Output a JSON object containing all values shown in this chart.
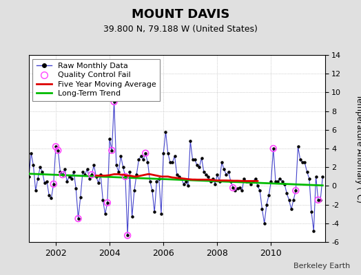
{
  "title": "MOUNT DAVIS",
  "subtitle": "39.800 N, 79.188 W (United States)",
  "ylabel": "Temperature Anomaly (°C)",
  "credit": "Berkeley Earth",
  "ylim": [
    -6,
    14
  ],
  "yticks": [
    -6,
    -4,
    -2,
    0,
    2,
    4,
    6,
    8,
    10,
    12,
    14
  ],
  "xlim": [
    2001.0,
    2012.0
  ],
  "fig_bg_color": "#e0e0e0",
  "plot_bg_color": "#ffffff",
  "raw_monthly_x": [
    2001.0,
    2001.0833,
    2001.1667,
    2001.25,
    2001.3333,
    2001.4167,
    2001.5,
    2001.5833,
    2001.6667,
    2001.75,
    2001.8333,
    2001.9167,
    2002.0,
    2002.0833,
    2002.1667,
    2002.25,
    2002.3333,
    2002.4167,
    2002.5,
    2002.5833,
    2002.6667,
    2002.75,
    2002.8333,
    2002.9167,
    2003.0,
    2003.0833,
    2003.1667,
    2003.25,
    2003.3333,
    2003.4167,
    2003.5,
    2003.5833,
    2003.6667,
    2003.75,
    2003.8333,
    2003.9167,
    2004.0,
    2004.0833,
    2004.1667,
    2004.25,
    2004.3333,
    2004.4167,
    2004.5,
    2004.5833,
    2004.6667,
    2004.75,
    2004.8333,
    2004.9167,
    2005.0,
    2005.0833,
    2005.1667,
    2005.25,
    2005.3333,
    2005.4167,
    2005.5,
    2005.5833,
    2005.6667,
    2005.75,
    2005.8333,
    2005.9167,
    2006.0,
    2006.0833,
    2006.1667,
    2006.25,
    2006.3333,
    2006.4167,
    2006.5,
    2006.5833,
    2006.6667,
    2006.75,
    2006.8333,
    2006.9167,
    2007.0,
    2007.0833,
    2007.1667,
    2007.25,
    2007.3333,
    2007.4167,
    2007.5,
    2007.5833,
    2007.6667,
    2007.75,
    2007.8333,
    2007.9167,
    2008.0,
    2008.0833,
    2008.1667,
    2008.25,
    2008.3333,
    2008.4167,
    2008.5,
    2008.5833,
    2008.6667,
    2008.75,
    2008.8333,
    2008.9167,
    2009.0,
    2009.0833,
    2009.1667,
    2009.25,
    2009.3333,
    2009.4167,
    2009.5,
    2009.5833,
    2009.6667,
    2009.75,
    2009.8333,
    2009.9167,
    2010.0,
    2010.0833,
    2010.1667,
    2010.25,
    2010.3333,
    2010.4167,
    2010.5,
    2010.5833,
    2010.6667,
    2010.75,
    2010.8333,
    2010.9167,
    2011.0,
    2011.0833,
    2011.1667,
    2011.25,
    2011.3333,
    2011.4167,
    2011.5,
    2011.5833,
    2011.6667,
    2011.75,
    2011.8333,
    2011.9167
  ],
  "raw_monthly_y": [
    1.0,
    3.5,
    2.2,
    -0.5,
    0.8,
    2.0,
    1.5,
    0.3,
    0.5,
    -1.0,
    -1.3,
    0.2,
    4.2,
    3.8,
    1.5,
    1.2,
    1.8,
    0.5,
    1.0,
    0.8,
    1.5,
    -0.3,
    -3.5,
    -1.2,
    1.5,
    1.2,
    1.8,
    0.8,
    1.2,
    2.2,
    1.0,
    0.3,
    1.2,
    -1.5,
    -3.0,
    -1.8,
    5.0,
    3.8,
    9.0,
    2.2,
    1.5,
    3.2,
    2.0,
    1.0,
    -5.3,
    1.5,
    -3.3,
    -0.5,
    1.2,
    2.8,
    3.2,
    2.8,
    3.5,
    2.5,
    0.5,
    -0.5,
    -2.8,
    0.5,
    0.8,
    -3.0,
    3.5,
    5.8,
    3.5,
    2.5,
    2.5,
    3.2,
    1.2,
    1.0,
    0.8,
    0.2,
    0.5,
    0.0,
    4.8,
    2.8,
    2.8,
    2.2,
    2.0,
    3.0,
    1.5,
    1.2,
    1.0,
    0.5,
    0.8,
    0.2,
    1.2,
    0.5,
    2.5,
    1.8,
    1.2,
    1.5,
    0.5,
    -0.2,
    -0.5,
    -0.3,
    -0.2,
    -0.5,
    0.8,
    0.5,
    0.5,
    0.2,
    0.5,
    0.8,
    0.0,
    -0.5,
    -2.5,
    -4.0,
    -2.0,
    -1.0,
    0.5,
    4.0,
    0.5,
    0.5,
    0.8,
    0.5,
    0.2,
    -0.8,
    -1.5,
    -2.5,
    -1.5,
    -0.5,
    4.2,
    2.8,
    2.5,
    2.5,
    1.5,
    0.8,
    -2.8,
    -4.8,
    1.0,
    -1.5,
    -1.5,
    1.0
  ],
  "qc_fail_x": [
    2001.9167,
    2002.0,
    2002.0833,
    2002.25,
    2002.8333,
    2003.3333,
    2003.9167,
    2004.0833,
    2004.1667,
    2004.5833,
    2004.6667,
    2005.3333,
    2008.5833,
    2010.0833,
    2010.9167,
    2011.75
  ],
  "qc_fail_y": [
    0.2,
    4.2,
    3.8,
    1.2,
    -3.5,
    1.2,
    -1.8,
    3.8,
    9.0,
    1.0,
    -5.3,
    3.5,
    -0.2,
    4.0,
    -0.5,
    -1.5
  ],
  "moving_avg_x": [
    2003.5,
    2003.6667,
    2003.8333,
    2004.0,
    2004.0833,
    2004.1667,
    2004.25,
    2004.3333,
    2004.4167,
    2004.5,
    2004.5833,
    2004.6667,
    2004.75,
    2004.8333,
    2004.9167,
    2005.0,
    2005.0833,
    2005.1667,
    2005.25,
    2005.3333,
    2005.4167,
    2005.5,
    2005.5833,
    2005.6667,
    2005.75,
    2005.8333,
    2005.9167,
    2006.0,
    2006.0833,
    2006.1667,
    2006.25,
    2006.3333,
    2006.4167,
    2006.5,
    2006.5833,
    2006.6667,
    2006.75,
    2006.8333,
    2006.9167,
    2007.0,
    2007.0833,
    2007.1667,
    2007.25,
    2007.3333,
    2007.4167,
    2007.5,
    2007.5833,
    2007.6667,
    2007.75,
    2007.8333,
    2007.9167,
    2008.0,
    2008.0833,
    2008.1667,
    2008.25,
    2008.3333,
    2008.4167,
    2008.5,
    2008.5833,
    2008.6667,
    2008.75,
    2008.8333,
    2008.9167,
    2009.0,
    2009.0833,
    2009.1667,
    2009.25,
    2009.3333,
    2009.4167,
    2009.5
  ],
  "moving_avg_y": [
    1.1,
    1.1,
    1.1,
    1.15,
    1.2,
    1.25,
    1.25,
    1.25,
    1.2,
    1.2,
    1.15,
    1.1,
    1.1,
    1.05,
    1.0,
    1.0,
    1.05,
    1.1,
    1.15,
    1.2,
    1.25,
    1.25,
    1.2,
    1.15,
    1.1,
    1.05,
    1.0,
    1.0,
    1.0,
    1.0,
    0.95,
    0.9,
    0.88,
    0.85,
    0.82,
    0.8,
    0.78,
    0.75,
    0.72,
    0.7,
    0.68,
    0.68,
    0.67,
    0.67,
    0.67,
    0.67,
    0.67,
    0.67,
    0.65,
    0.63,
    0.6,
    0.58,
    0.58,
    0.58,
    0.58,
    0.58,
    0.57,
    0.57,
    0.55,
    0.55,
    0.55,
    0.54,
    0.53,
    0.52,
    0.52,
    0.52,
    0.52,
    0.52,
    0.52,
    0.52
  ],
  "trend_x": [
    2001.0,
    2011.9167
  ],
  "trend_y": [
    1.3,
    0.05
  ],
  "line_color": "#4444cc",
  "dot_color": "#000000",
  "qc_color": "#ff44ff",
  "moving_avg_color": "#dd0000",
  "trend_color": "#00bb00",
  "xticks": [
    2002,
    2004,
    2006,
    2008,
    2010
  ],
  "legend_fontsize": 8,
  "title_fontsize": 13,
  "subtitle_fontsize": 9
}
